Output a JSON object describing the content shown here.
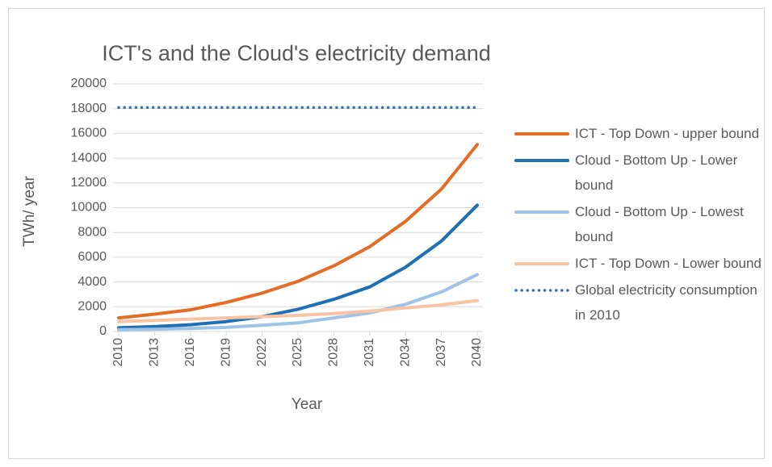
{
  "chart_data": {
    "type": "line",
    "title": "ICT's and the Cloud's electricity demand",
    "x_label": "Year",
    "y_label": "TWh/ year",
    "x": [
      2010,
      2013,
      2016,
      2019,
      2022,
      2025,
      2028,
      2031,
      2034,
      2037,
      2040
    ],
    "xlim": [
      2010,
      2040
    ],
    "xticks": [
      2010,
      2013,
      2016,
      2019,
      2022,
      2025,
      2028,
      2031,
      2034,
      2037,
      2040
    ],
    "ylim": [
      0,
      20000
    ],
    "yticks": [
      0,
      2000,
      4000,
      6000,
      8000,
      10000,
      12000,
      14000,
      16000,
      18000,
      20000
    ],
    "grid": true,
    "legend": "right",
    "series": [
      {
        "name": "ICT - Top Down - upper bound",
        "color": "#e46c25",
        "values": [
          1100,
          1400,
          1750,
          2350,
          3100,
          4050,
          5300,
          6850,
          8900,
          11500,
          15100
        ]
      },
      {
        "name": "Cloud - Bottom Up - Lower bound",
        "color": "#1f6fb4",
        "values": [
          300,
          400,
          550,
          800,
          1200,
          1800,
          2600,
          3600,
          5200,
          7300,
          10200
        ]
      },
      {
        "name": "Cloud - Bottom Up - Lowest bound",
        "color": "#9dc3e6",
        "values": [
          150,
          180,
          250,
          330,
          500,
          700,
          1100,
          1500,
          2200,
          3200,
          4600
        ]
      },
      {
        "name": "ICT - Top Down - Lower bound",
        "color": "#f8c3a2",
        "values": [
          800,
          900,
          1000,
          1100,
          1200,
          1300,
          1450,
          1650,
          1900,
          2150,
          2500
        ]
      },
      {
        "name": "Global electricity consumption in 2010",
        "color": "#2e75b6",
        "dash": "dotted",
        "values": [
          18100,
          18100,
          18100,
          18100,
          18100,
          18100,
          18100,
          18100,
          18100,
          18100,
          18100
        ]
      }
    ]
  }
}
